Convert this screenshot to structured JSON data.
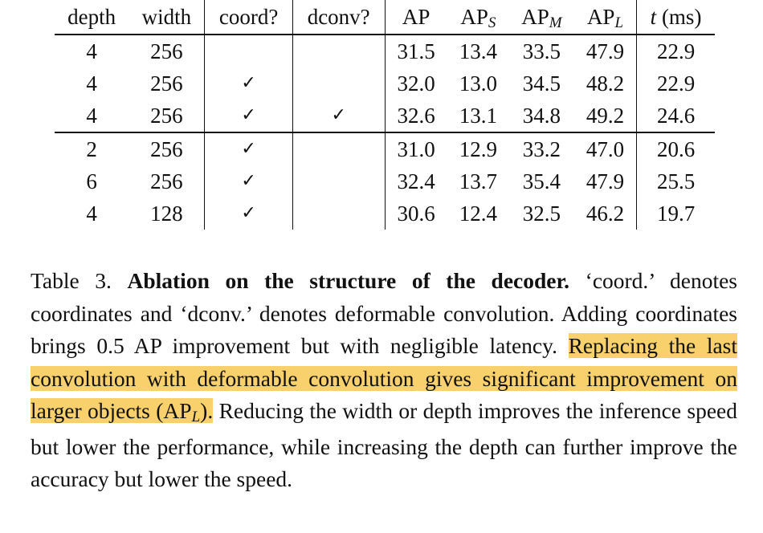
{
  "table": {
    "headers": {
      "depth": "depth",
      "width": "width",
      "coord": "coord?",
      "dconv": "dconv?",
      "ap": "AP",
      "aps_base": "AP",
      "aps_sub": "S",
      "apm_base": "AP",
      "apm_sub": "M",
      "apl_base": "AP",
      "apl_sub": "L",
      "t_var": "t",
      "t_unit": "(ms)"
    },
    "rows": [
      {
        "depth": "4",
        "width": "256",
        "coord": "",
        "dconv": "",
        "ap": "31.5",
        "aps": "13.4",
        "apm": "33.5",
        "apl": "47.9",
        "t": "22.9"
      },
      {
        "depth": "4",
        "width": "256",
        "coord": "✓",
        "dconv": "",
        "ap": "32.0",
        "aps": "13.0",
        "apm": "34.5",
        "apl": "48.2",
        "t": "22.9"
      },
      {
        "depth": "4",
        "width": "256",
        "coord": "✓",
        "dconv": "✓",
        "ap": "32.6",
        "aps": "13.1",
        "apm": "34.8",
        "apl": "49.2",
        "t": "24.6"
      },
      {
        "depth": "2",
        "width": "256",
        "coord": "✓",
        "dconv": "",
        "ap": "31.0",
        "aps": "12.9",
        "apm": "33.2",
        "apl": "47.0",
        "t": "20.6"
      },
      {
        "depth": "6",
        "width": "256",
        "coord": "✓",
        "dconv": "",
        "ap": "32.4",
        "aps": "13.7",
        "apm": "35.4",
        "apl": "47.9",
        "t": "25.5"
      },
      {
        "depth": "4",
        "width": "128",
        "coord": "✓",
        "dconv": "",
        "ap": "30.6",
        "aps": "12.4",
        "apm": "32.5",
        "apl": "46.2",
        "t": "19.7"
      }
    ],
    "bold_cells": [
      "2.ap",
      "2.apl",
      "4.aps",
      "4.apm",
      "5.t"
    ]
  },
  "caption": {
    "label": "Table 3.",
    "title": "Ablation on the structure of the decoder.",
    "text1": "‘coord.’ denotes coordinates and ‘dconv.’ denotes deformable convolution. Adding coordinates brings 0.5 AP improvement but with negligible latency.",
    "highlight_pre": "Replacing the last convolution with deformable convolution gives significant improvement on larger objects (AP",
    "highlight_sub": "L",
    "highlight_post": ").",
    "text2": "Reducing the width or depth improves the inference speed but lower the performance, while increasing the depth can further improve the accuracy but lower the speed.",
    "highlight_color": "#f8d06c"
  }
}
